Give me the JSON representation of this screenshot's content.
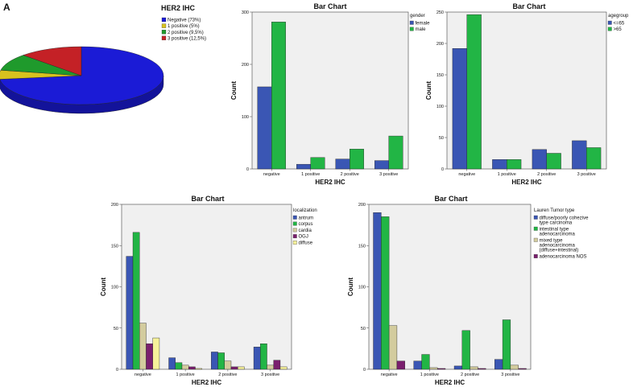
{
  "panel_letter": "A",
  "chart_data": [
    {
      "type": "pie",
      "title": "HER2 IHC",
      "labels": [
        "Negative (73%)",
        "1 positive (5%)",
        "2 positive (9,5%)",
        "3 positive (12,5%)"
      ],
      "values": [
        73,
        5,
        9.5,
        12.5
      ],
      "colors": [
        "#1b1bd6",
        "#d8c21e",
        "#1f9a2c",
        "#c42126"
      ]
    },
    {
      "type": "bar",
      "title": "Bar Chart",
      "xlabel": "HER2 IHC",
      "ylabel": "Count",
      "categories": [
        "negative",
        "1 positive",
        "2 positive",
        "3 positive"
      ],
      "ylim": [
        0,
        300
      ],
      "yticks": [
        0,
        100,
        200,
        300
      ],
      "legend_title": "gender",
      "series": [
        {
          "name": "female",
          "values": [
            157,
            9,
            19,
            16
          ],
          "color": "#3a56b4"
        },
        {
          "name": "male",
          "values": [
            281,
            22,
            38,
            63
          ],
          "color": "#22b545"
        }
      ]
    },
    {
      "type": "bar",
      "title": "Bar Chart",
      "xlabel": "HER2 IHC",
      "ylabel": "Count",
      "categories": [
        "negative",
        "1 positive",
        "2 positive",
        "3 positive"
      ],
      "ylim": [
        0,
        250
      ],
      "yticks": [
        0,
        50,
        100,
        150,
        200,
        250
      ],
      "legend_title": "agegroup",
      "series": [
        {
          "name": "<=65",
          "values": [
            192,
            15,
            31,
            45
          ],
          "color": "#3a56b4"
        },
        {
          "name": ">65",
          "values": [
            246,
            15,
            25,
            34
          ],
          "color": "#22b545"
        }
      ]
    },
    {
      "type": "bar",
      "title": "Bar Chart",
      "xlabel": "HER2 IHC",
      "ylabel": "Count",
      "categories": [
        "negative",
        "1 positive",
        "2 positive",
        "3 positive"
      ],
      "ylim": [
        0,
        200
      ],
      "yticks": [
        0,
        50,
        100,
        150,
        200
      ],
      "legend_title": "localization",
      "series": [
        {
          "name": "antrum",
          "values": [
            137,
            14,
            21,
            27
          ],
          "color": "#3a56b4"
        },
        {
          "name": "corpus",
          "values": [
            166,
            8,
            20,
            31
          ],
          "color": "#22b545"
        },
        {
          "name": "cardia",
          "values": [
            56,
            5,
            10,
            5
          ],
          "color": "#d3cc9e"
        },
        {
          "name": "OGJ",
          "values": [
            31,
            3,
            3,
            11
          ],
          "color": "#7a1f6e"
        },
        {
          "name": "diffuse",
          "values": [
            38,
            1,
            3,
            3
          ],
          "color": "#f6f19a"
        }
      ]
    },
    {
      "type": "bar",
      "title": "Bar Chart",
      "xlabel": "HER2 IHC",
      "ylabel": "Count",
      "categories": [
        "negative",
        "1 positive",
        "2 positive",
        "3 positive"
      ],
      "ylim": [
        0,
        200
      ],
      "yticks": [
        0,
        50,
        100,
        150,
        200
      ],
      "legend_title": "Lauren Tumor type",
      "series": [
        {
          "name": "diffuse/poorly cohezive type carcinoma",
          "values": [
            190,
            10,
            4,
            12
          ],
          "color": "#3a56b4"
        },
        {
          "name": "intestinal type adenocarcinoma",
          "values": [
            185,
            18,
            47,
            60
          ],
          "color": "#22b545"
        },
        {
          "name": "mixed type adenocarcinoma (diffuse+intestinal)",
          "values": [
            53,
            2,
            3,
            5
          ],
          "color": "#d3cc9e"
        },
        {
          "name": "adenocarcinoma NOS",
          "values": [
            10,
            1,
            1,
            1
          ],
          "color": "#7a1f6e"
        }
      ]
    }
  ]
}
